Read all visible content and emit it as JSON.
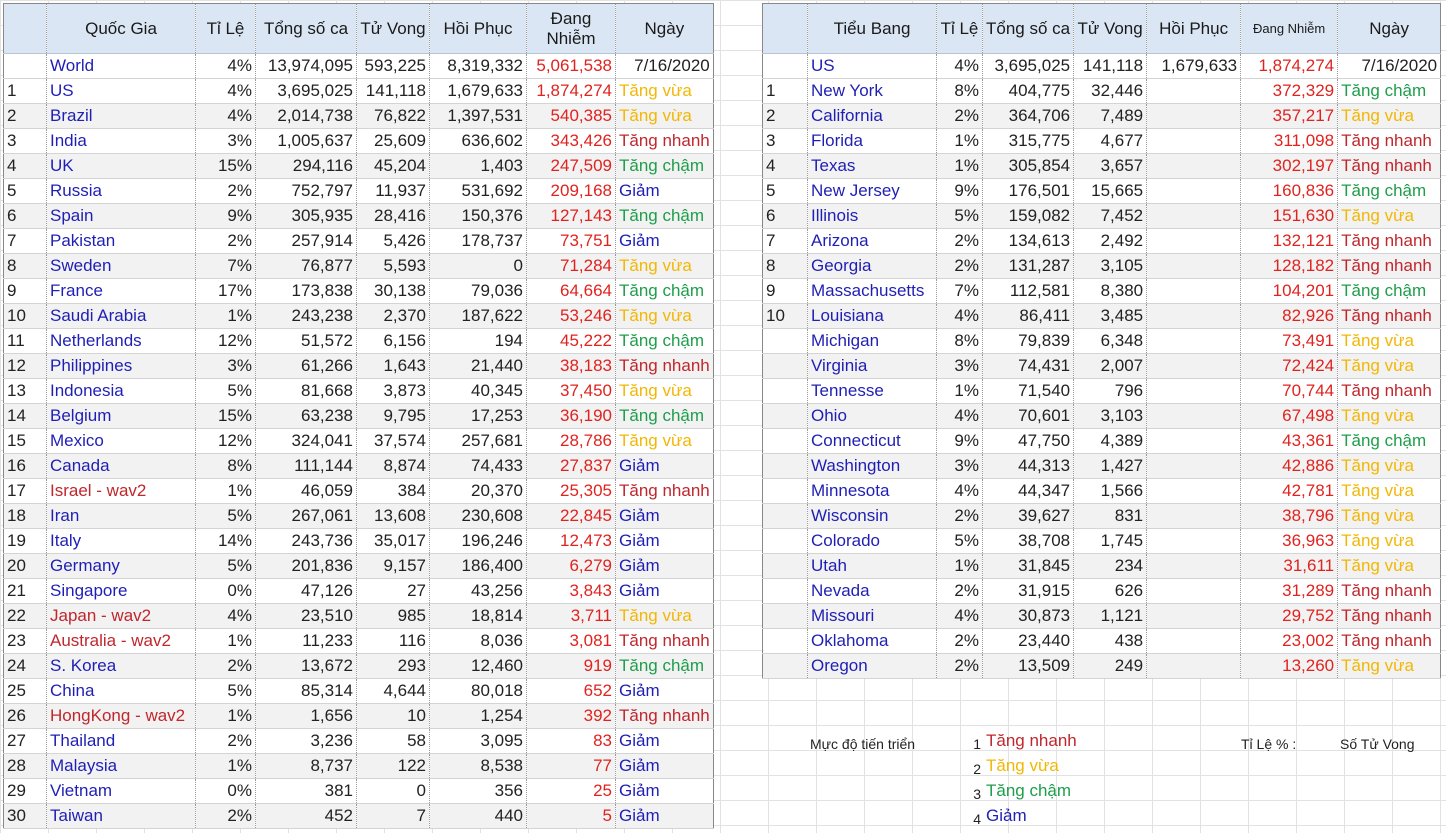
{
  "country_table": {
    "headers": [
      "",
      "Quốc Gia",
      "Tỉ Lệ",
      "Tổng số ca",
      "Tử Vong",
      "Hồi Phục",
      "Đang Nhiễm",
      "Ngày"
    ],
    "world": {
      "name": "World",
      "rate": "4%",
      "total": "13,974,095",
      "deaths": "593,225",
      "recovered": "8,319,332",
      "active": "5,061,538",
      "date": "7/16/2020"
    },
    "rows": [
      {
        "rank": "1",
        "name": "US",
        "rate": "4%",
        "total": "3,695,025",
        "deaths": "141,118",
        "recovered": "1,679,633",
        "active": "1,874,274",
        "trend": "Tăng vừa",
        "tc": "mid",
        "wav": false
      },
      {
        "rank": "2",
        "name": "Brazil",
        "rate": "4%",
        "total": "2,014,738",
        "deaths": "76,822",
        "recovered": "1,397,531",
        "active": "540,385",
        "trend": "Tăng vừa",
        "tc": "mid",
        "wav": false
      },
      {
        "rank": "3",
        "name": "India",
        "rate": "3%",
        "total": "1,005,637",
        "deaths": "25,609",
        "recovered": "636,602",
        "active": "343,426",
        "trend": "Tăng nhanh",
        "tc": "fast",
        "wav": false
      },
      {
        "rank": "4",
        "name": "UK",
        "rate": "15%",
        "total": "294,116",
        "deaths": "45,204",
        "recovered": "1,403",
        "active": "247,509",
        "trend": "Tăng chậm",
        "tc": "slow",
        "wav": false
      },
      {
        "rank": "5",
        "name": "Russia",
        "rate": "2%",
        "total": "752,797",
        "deaths": "11,937",
        "recovered": "531,692",
        "active": "209,168",
        "trend": "Giảm",
        "tc": "dec",
        "wav": false
      },
      {
        "rank": "6",
        "name": "Spain",
        "rate": "9%",
        "total": "305,935",
        "deaths": "28,416",
        "recovered": "150,376",
        "active": "127,143",
        "trend": "Tăng chậm",
        "tc": "slow",
        "wav": false
      },
      {
        "rank": "7",
        "name": "Pakistan",
        "rate": "2%",
        "total": "257,914",
        "deaths": "5,426",
        "recovered": "178,737",
        "active": "73,751",
        "trend": "Giảm",
        "tc": "dec",
        "wav": false
      },
      {
        "rank": "8",
        "name": "Sweden",
        "rate": "7%",
        "total": "76,877",
        "deaths": "5,593",
        "recovered": "0",
        "active": "71,284",
        "trend": "Tăng vừa",
        "tc": "mid",
        "wav": false
      },
      {
        "rank": "9",
        "name": "France",
        "rate": "17%",
        "total": "173,838",
        "deaths": "30,138",
        "recovered": "79,036",
        "active": "64,664",
        "trend": "Tăng chậm",
        "tc": "slow",
        "wav": false
      },
      {
        "rank": "10",
        "name": "Saudi Arabia",
        "rate": "1%",
        "total": "243,238",
        "deaths": "2,370",
        "recovered": "187,622",
        "active": "53,246",
        "trend": "Tăng vừa",
        "tc": "mid",
        "wav": false
      },
      {
        "rank": "11",
        "name": "Netherlands",
        "rate": "12%",
        "total": "51,572",
        "deaths": "6,156",
        "recovered": "194",
        "active": "45,222",
        "trend": "Tăng chậm",
        "tc": "slow",
        "wav": false
      },
      {
        "rank": "12",
        "name": "Philippines",
        "rate": "3%",
        "total": "61,266",
        "deaths": "1,643",
        "recovered": "21,440",
        "active": "38,183",
        "trend": "Tăng nhanh",
        "tc": "fast",
        "wav": false
      },
      {
        "rank": "13",
        "name": "Indonesia",
        "rate": "5%",
        "total": "81,668",
        "deaths": "3,873",
        "recovered": "40,345",
        "active": "37,450",
        "trend": "Tăng vừa",
        "tc": "mid",
        "wav": false
      },
      {
        "rank": "14",
        "name": "Belgium",
        "rate": "15%",
        "total": "63,238",
        "deaths": "9,795",
        "recovered": "17,253",
        "active": "36,190",
        "trend": "Tăng chậm",
        "tc": "slow",
        "wav": false
      },
      {
        "rank": "15",
        "name": "Mexico",
        "rate": "12%",
        "total": "324,041",
        "deaths": "37,574",
        "recovered": "257,681",
        "active": "28,786",
        "trend": "Tăng vừa",
        "tc": "mid",
        "wav": false
      },
      {
        "rank": "16",
        "name": "Canada",
        "rate": "8%",
        "total": "111,144",
        "deaths": "8,874",
        "recovered": "74,433",
        "active": "27,837",
        "trend": "Giảm",
        "tc": "dec",
        "wav": false
      },
      {
        "rank": "17",
        "name": "Israel - wav2",
        "rate": "1%",
        "total": "46,059",
        "deaths": "384",
        "recovered": "20,370",
        "active": "25,305",
        "trend": "Tăng nhanh",
        "tc": "fast",
        "wav": true
      },
      {
        "rank": "18",
        "name": "Iran",
        "rate": "5%",
        "total": "267,061",
        "deaths": "13,608",
        "recovered": "230,608",
        "active": "22,845",
        "trend": "Giảm",
        "tc": "dec",
        "wav": false
      },
      {
        "rank": "19",
        "name": "Italy",
        "rate": "14%",
        "total": "243,736",
        "deaths": "35,017",
        "recovered": "196,246",
        "active": "12,473",
        "trend": "Giảm",
        "tc": "dec",
        "wav": false
      },
      {
        "rank": "20",
        "name": "Germany",
        "rate": "5%",
        "total": "201,836",
        "deaths": "9,157",
        "recovered": "186,400",
        "active": "6,279",
        "trend": "Giảm",
        "tc": "dec",
        "wav": false
      },
      {
        "rank": "21",
        "name": "Singapore",
        "rate": "0%",
        "total": "47,126",
        "deaths": "27",
        "recovered": "43,256",
        "active": "3,843",
        "trend": "Giảm",
        "tc": "dec",
        "wav": false
      },
      {
        "rank": "22",
        "name": "Japan - wav2",
        "rate": "4%",
        "total": "23,510",
        "deaths": "985",
        "recovered": "18,814",
        "active": "3,711",
        "trend": "Tăng vừa",
        "tc": "mid",
        "wav": true
      },
      {
        "rank": "23",
        "name": "Australia - wav2",
        "rate": "1%",
        "total": "11,233",
        "deaths": "116",
        "recovered": "8,036",
        "active": "3,081",
        "trend": "Tăng nhanh",
        "tc": "fast",
        "wav": true
      },
      {
        "rank": "24",
        "name": "S. Korea",
        "rate": "2%",
        "total": "13,672",
        "deaths": "293",
        "recovered": "12,460",
        "active": "919",
        "trend": "Tăng chậm",
        "tc": "slow",
        "wav": false
      },
      {
        "rank": "25",
        "name": "China",
        "rate": "5%",
        "total": "85,314",
        "deaths": "4,644",
        "recovered": "80,018",
        "active": "652",
        "trend": "Giảm",
        "tc": "dec",
        "wav": false
      },
      {
        "rank": "26",
        "name": "HongKong - wav2",
        "rate": "1%",
        "total": "1,656",
        "deaths": "10",
        "recovered": "1,254",
        "active": "392",
        "trend": "Tăng nhanh",
        "tc": "fast",
        "wav": true
      },
      {
        "rank": "27",
        "name": "Thailand",
        "rate": "2%",
        "total": "3,236",
        "deaths": "58",
        "recovered": "3,095",
        "active": "83",
        "trend": "Giảm",
        "tc": "dec",
        "wav": false
      },
      {
        "rank": "28",
        "name": "Malaysia",
        "rate": "1%",
        "total": "8,737",
        "deaths": "122",
        "recovered": "8,538",
        "active": "77",
        "trend": "Giảm",
        "tc": "dec",
        "wav": false
      },
      {
        "rank": "29",
        "name": "Vietnam",
        "rate": "0%",
        "total": "381",
        "deaths": "0",
        "recovered": "356",
        "active": "25",
        "trend": "Giảm",
        "tc": "dec",
        "wav": false
      },
      {
        "rank": "30",
        "name": "Taiwan",
        "rate": "2%",
        "total": "452",
        "deaths": "7",
        "recovered": "440",
        "active": "5",
        "trend": "Giảm",
        "tc": "dec",
        "wav": false
      }
    ]
  },
  "state_table": {
    "headers": [
      "",
      "Tiểu Bang",
      "Tỉ Lệ",
      "Tổng số ca",
      "Tử Vong",
      "Hồi Phục",
      "Đang Nhiễm",
      "Ngày"
    ],
    "us": {
      "name": "US",
      "rate": "4%",
      "total": "3,695,025",
      "deaths": "141,118",
      "recovered": "1,679,633",
      "active": "1,874,274",
      "date": "7/16/2020"
    },
    "rows": [
      {
        "rank": "1",
        "name": "New York",
        "rate": "8%",
        "total": "404,775",
        "deaths": "32,446",
        "active": "372,329",
        "trend": "Tăng chậm",
        "tc": "slow"
      },
      {
        "rank": "2",
        "name": "California",
        "rate": "2%",
        "total": "364,706",
        "deaths": "7,489",
        "active": "357,217",
        "trend": "Tăng vừa",
        "tc": "mid"
      },
      {
        "rank": "3",
        "name": "Florida",
        "rate": "1%",
        "total": "315,775",
        "deaths": "4,677",
        "active": "311,098",
        "trend": "Tăng nhanh",
        "tc": "fast"
      },
      {
        "rank": "4",
        "name": "Texas",
        "rate": "1%",
        "total": "305,854",
        "deaths": "3,657",
        "active": "302,197",
        "trend": "Tăng nhanh",
        "tc": "fast"
      },
      {
        "rank": "5",
        "name": "New Jersey",
        "rate": "9%",
        "total": "176,501",
        "deaths": "15,665",
        "active": "160,836",
        "trend": "Tăng chậm",
        "tc": "slow"
      },
      {
        "rank": "6",
        "name": "Illinois",
        "rate": "5%",
        "total": "159,082",
        "deaths": "7,452",
        "active": "151,630",
        "trend": "Tăng vừa",
        "tc": "mid"
      },
      {
        "rank": "7",
        "name": "Arizona",
        "rate": "2%",
        "total": "134,613",
        "deaths": "2,492",
        "active": "132,121",
        "trend": "Tăng nhanh",
        "tc": "fast"
      },
      {
        "rank": "8",
        "name": "Georgia",
        "rate": "2%",
        "total": "131,287",
        "deaths": "3,105",
        "active": "128,182",
        "trend": "Tăng nhanh",
        "tc": "fast"
      },
      {
        "rank": "9",
        "name": "Massachusetts",
        "rate": "7%",
        "total": "112,581",
        "deaths": "8,380",
        "active": "104,201",
        "trend": "Tăng chậm",
        "tc": "slow"
      },
      {
        "rank": "10",
        "name": "Louisiana",
        "rate": "4%",
        "total": "86,411",
        "deaths": "3,485",
        "active": "82,926",
        "trend": "Tăng nhanh",
        "tc": "fast"
      },
      {
        "rank": "",
        "name": "Michigan",
        "rate": "8%",
        "total": "79,839",
        "deaths": "6,348",
        "active": "73,491",
        "trend": "Tăng vừa",
        "tc": "mid"
      },
      {
        "rank": "",
        "name": "Virginia",
        "rate": "3%",
        "total": "74,431",
        "deaths": "2,007",
        "active": "72,424",
        "trend": "Tăng vừa",
        "tc": "mid"
      },
      {
        "rank": "",
        "name": "Tennesse",
        "rate": "1%",
        "total": "71,540",
        "deaths": "796",
        "active": "70,744",
        "trend": "Tăng nhanh",
        "tc": "fast"
      },
      {
        "rank": "",
        "name": "Ohio",
        "rate": "4%",
        "total": "70,601",
        "deaths": "3,103",
        "active": "67,498",
        "trend": "Tăng vừa",
        "tc": "mid"
      },
      {
        "rank": "",
        "name": "Connecticut",
        "rate": "9%",
        "total": "47,750",
        "deaths": "4,389",
        "active": "43,361",
        "trend": "Tăng chậm",
        "tc": "slow"
      },
      {
        "rank": "",
        "name": "Washington",
        "rate": "3%",
        "total": "44,313",
        "deaths": "1,427",
        "active": "42,886",
        "trend": "Tăng vừa",
        "tc": "mid"
      },
      {
        "rank": "",
        "name": "Minnesota",
        "rate": "4%",
        "total": "44,347",
        "deaths": "1,566",
        "active": "42,781",
        "trend": "Tăng vừa",
        "tc": "mid"
      },
      {
        "rank": "",
        "name": "Wisconsin",
        "rate": "2%",
        "total": "39,627",
        "deaths": "831",
        "active": "38,796",
        "trend": "Tăng vừa",
        "tc": "mid"
      },
      {
        "rank": "",
        "name": "Colorado",
        "rate": "5%",
        "total": "38,708",
        "deaths": "1,745",
        "active": "36,963",
        "trend": "Tăng vừa",
        "tc": "mid"
      },
      {
        "rank": "",
        "name": "Utah",
        "rate": "1%",
        "total": "31,845",
        "deaths": "234",
        "active": "31,611",
        "trend": "Tăng vừa",
        "tc": "mid"
      },
      {
        "rank": "",
        "name": "Nevada",
        "rate": "2%",
        "total": "31,915",
        "deaths": "626",
        "active": "31,289",
        "trend": "Tăng nhanh",
        "tc": "fast"
      },
      {
        "rank": "",
        "name": "Missouri",
        "rate": "4%",
        "total": "30,873",
        "deaths": "1,121",
        "active": "29,752",
        "trend": "Tăng nhanh",
        "tc": "fast"
      },
      {
        "rank": "",
        "name": "Oklahoma",
        "rate": "2%",
        "total": "23,440",
        "deaths": "438",
        "active": "23,002",
        "trend": "Tăng nhanh",
        "tc": "fast"
      },
      {
        "rank": "",
        "name": "Oregon",
        "rate": "2%",
        "total": "13,509",
        "deaths": "249",
        "active": "13,260",
        "trend": "Tăng vừa",
        "tc": "mid"
      }
    ]
  },
  "legend": {
    "title": "Mực độ tiến triển",
    "items": [
      {
        "num": "1",
        "label": "Tăng nhanh",
        "tc": "fast"
      },
      {
        "num": "2",
        "label": "Tăng vừa",
        "tc": "mid"
      },
      {
        "num": "3",
        "label": "Tăng chậm",
        "tc": "slow"
      },
      {
        "num": "4",
        "label": "Giảm",
        "tc": "dec"
      }
    ],
    "rate_label": "Tỉ Lệ % :",
    "deaths_label": "Số Tử Vong"
  },
  "colors": {
    "fast": "#c0272d",
    "mid": "#f2b705",
    "slow": "#1e9e4a",
    "dec": "#1f1fb5",
    "header_bg": "#dbe6f4",
    "active": "#e0231f"
  }
}
